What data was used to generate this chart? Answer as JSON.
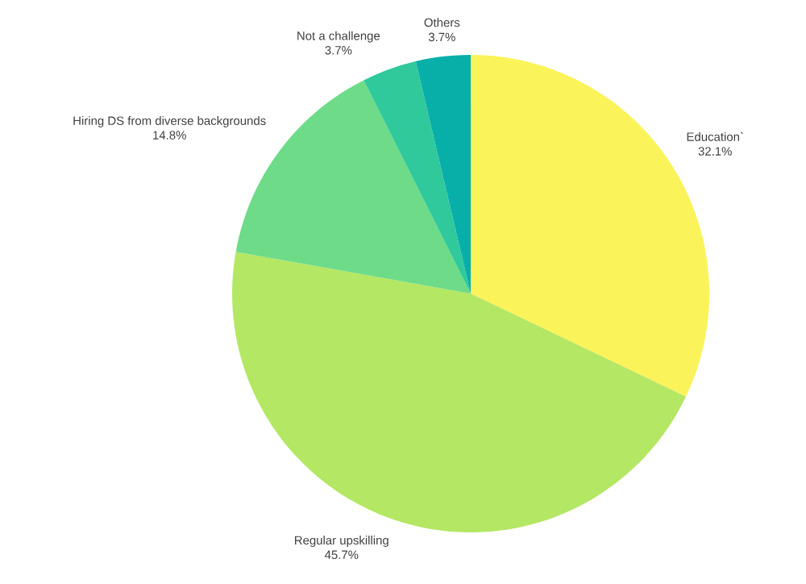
{
  "chart_data": {
    "type": "pie",
    "categories": [
      "Education`",
      "Regular upskilling",
      "Hiring DS from diverse backgrounds",
      "Not a challenge",
      "Others"
    ],
    "values": [
      32.1,
      45.7,
      14.8,
      3.7,
      3.7
    ],
    "value_labels": [
      "32.1%",
      "45.7%",
      "14.8%",
      "3.7%",
      "3.7%"
    ],
    "colors": [
      "#fbf35a",
      "#b4e763",
      "#6edb88",
      "#30c99c",
      "#08afa8"
    ]
  }
}
